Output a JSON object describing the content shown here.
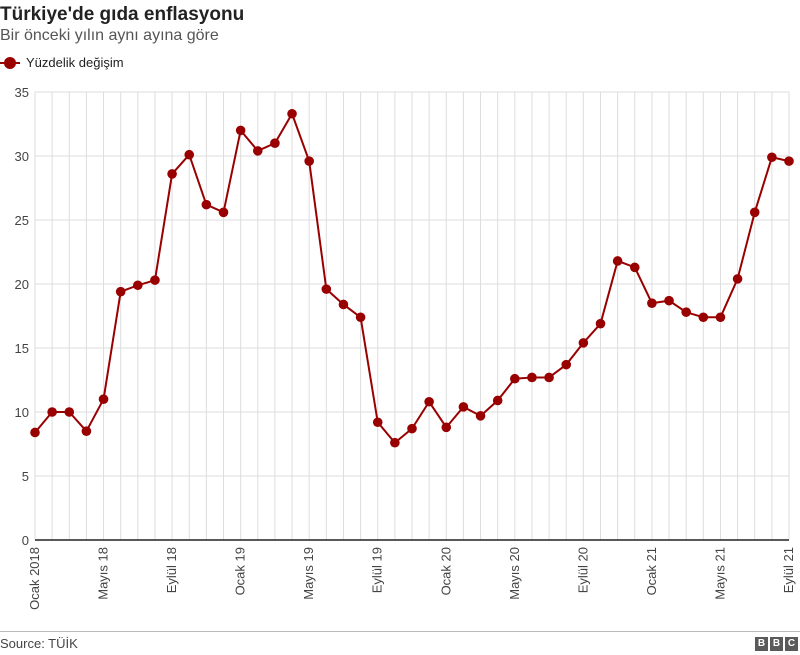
{
  "header": {
    "title": "Türkiye'de gıda enflasyonu",
    "subtitle": "Bir önceki yılın aynı ayına göre"
  },
  "footer": {
    "source": "Source: TÜİK",
    "logo_letters": [
      "B",
      "B",
      "C"
    ]
  },
  "colors": {
    "series": "#990000",
    "grid": "#dddddd",
    "axis": "#222222"
  },
  "chart_data": {
    "type": "line",
    "title": "Türkiye'de gıda enflasyonu",
    "subtitle": "Bir önceki yılın aynı ayına göre",
    "xlabel": "",
    "ylabel": "",
    "ylim": [
      0,
      35
    ],
    "yticks": [
      0,
      5,
      10,
      15,
      20,
      25,
      30,
      35
    ],
    "grid": true,
    "legend": "top-left",
    "x": [
      "Ocak 2018",
      "Şubat 2018",
      "Mart 2018",
      "Nisan 2018",
      "Mayıs 2018",
      "Haziran 2018",
      "Temmuz 2018",
      "Ağustos 2018",
      "Eylül 2018",
      "Ekim 2018",
      "Kasım 2018",
      "Aralık 2018",
      "Ocak 2019",
      "Şubat 2019",
      "Mart 2019",
      "Nisan 2019",
      "Mayıs 2019",
      "Haziran 2019",
      "Temmuz 2019",
      "Ağustos 2019",
      "Eylül 2019",
      "Ekim 2019",
      "Kasım 2019",
      "Aralık 2019",
      "Ocak 2020",
      "Şubat 2020",
      "Mart 2020",
      "Nisan 2020",
      "Mayıs 2020",
      "Haziran 2020",
      "Temmuz 2020",
      "Ağustos 2020",
      "Eylül 2020",
      "Ekim 2020",
      "Kasım 2020",
      "Aralık 2020",
      "Ocak 2021",
      "Şubat 2021",
      "Mart 2021",
      "Nisan 2021",
      "Mayıs 2021",
      "Haziran 2021",
      "Temmuz 2021",
      "Ağustos 2021",
      "Eylül 2021"
    ],
    "xtick_labels": [
      {
        "index": 0,
        "label": "Ocak 2018"
      },
      {
        "index": 4,
        "label": "Mayıs 18"
      },
      {
        "index": 8,
        "label": "Eylül 18"
      },
      {
        "index": 12,
        "label": "Ocak 19"
      },
      {
        "index": 16,
        "label": "Mayıs 19"
      },
      {
        "index": 20,
        "label": "Eylül 19"
      },
      {
        "index": 24,
        "label": "Ocak 20"
      },
      {
        "index": 28,
        "label": "Mayıs 20"
      },
      {
        "index": 32,
        "label": "Eylül 20"
      },
      {
        "index": 36,
        "label": "Ocak 21"
      },
      {
        "index": 40,
        "label": "Mayıs 21"
      },
      {
        "index": 44,
        "label": "Eylül 21"
      }
    ],
    "series": [
      {
        "name": "Yüzdelik değişim",
        "values": [
          8.4,
          10.0,
          10.0,
          8.5,
          11.0,
          19.4,
          19.9,
          20.3,
          28.6,
          30.1,
          26.2,
          25.6,
          32.0,
          30.4,
          31.0,
          33.3,
          29.6,
          19.6,
          18.4,
          17.4,
          9.2,
          7.6,
          8.7,
          10.8,
          8.8,
          10.4,
          9.7,
          10.9,
          12.6,
          12.7,
          12.7,
          13.7,
          15.4,
          16.9,
          21.8,
          21.3,
          18.5,
          18.7,
          17.8,
          17.4,
          17.4,
          20.4,
          25.6,
          29.9,
          29.6
        ]
      }
    ]
  }
}
